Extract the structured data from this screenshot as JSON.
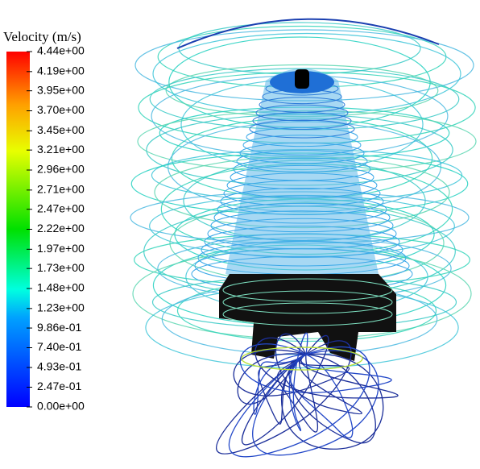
{
  "legend": {
    "title": "Velocity (m/s)",
    "range": [
      0,
      4.44
    ],
    "ticks": [
      {
        "value": 4.44,
        "label": "4.44e+00"
      },
      {
        "value": 4.19,
        "label": "4.19e+00"
      },
      {
        "value": 3.95,
        "label": "3.95e+00"
      },
      {
        "value": 3.7,
        "label": "3.70e+00"
      },
      {
        "value": 3.45,
        "label": "3.45e+00"
      },
      {
        "value": 3.21,
        "label": "3.21e+00"
      },
      {
        "value": 2.96,
        "label": "2.96e+00"
      },
      {
        "value": 2.71,
        "label": "2.71e+00"
      },
      {
        "value": 2.47,
        "label": "2.47e+00"
      },
      {
        "value": 2.22,
        "label": "2.22e+00"
      },
      {
        "value": 1.97,
        "label": "1.97e+00"
      },
      {
        "value": 1.73,
        "label": "1.73e+00"
      },
      {
        "value": 1.48,
        "label": "1.48e+00"
      },
      {
        "value": 1.23,
        "label": "1.23e+00"
      },
      {
        "value": 0.986,
        "label": "9.86e-01"
      },
      {
        "value": 0.74,
        "label": "7.40e-01"
      },
      {
        "value": 0.493,
        "label": "4.93e-01"
      },
      {
        "value": 0.247,
        "label": "2.47e-01"
      },
      {
        "value": 0,
        "label": "0.00e+00"
      }
    ]
  }
}
